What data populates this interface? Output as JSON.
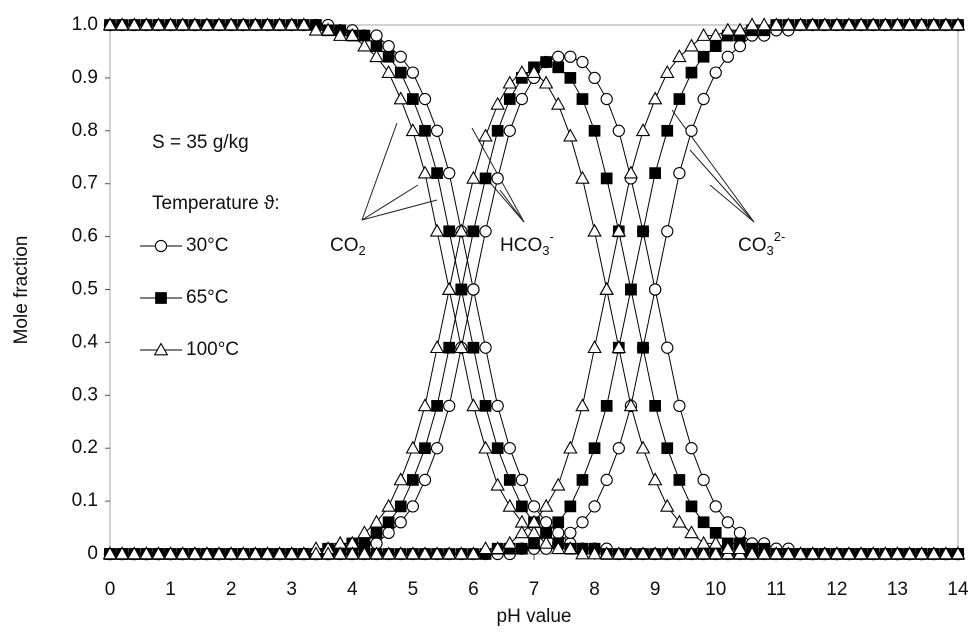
{
  "chart_data": {
    "type": "line",
    "xlabel": "pH value",
    "ylabel": "Mole fraction",
    "xlim": [
      0,
      14
    ],
    "ylim": [
      0,
      1
    ],
    "xticks": [
      0,
      1,
      2,
      3,
      4,
      5,
      6,
      7,
      8,
      9,
      10,
      11,
      12,
      13,
      14
    ],
    "yticks": [
      0,
      0.1,
      0.2,
      0.3,
      0.4,
      0.5,
      0.6,
      0.7,
      0.8,
      0.9,
      {
        "value": 1,
        "label": "1.0"
      }
    ],
    "grid": false,
    "annotations": {
      "salinity": "S = 35 g/kg",
      "legend_title": "Temperature ϑ:",
      "co2": {
        "text": "CO",
        "sub": "2"
      },
      "hco3": {
        "text": "HCO",
        "sub": "3",
        "sup": "-"
      },
      "co3": {
        "text": "CO",
        "sub": "3",
        "sup": "2-"
      }
    },
    "x": [
      0,
      0.2,
      0.4,
      0.6,
      0.8,
      1,
      1.2,
      1.4,
      1.6,
      1.8,
      2,
      2.2,
      2.4,
      2.6,
      2.8,
      3,
      3.2,
      3.4,
      3.6,
      3.8,
      4,
      4.2,
      4.4,
      4.6,
      4.8,
      5,
      5.2,
      5.4,
      5.6,
      5.8,
      6,
      6.2,
      6.4,
      6.6,
      6.8,
      7,
      7.2,
      7.4,
      7.6,
      7.8,
      8,
      8.2,
      8.4,
      8.6,
      8.8,
      9,
      9.2,
      9.4,
      9.6,
      9.8,
      10,
      10.2,
      10.4,
      10.6,
      10.8,
      11,
      11.2,
      11.4,
      11.6,
      11.8,
      12,
      12.2,
      12.4,
      12.6,
      12.8,
      13,
      13.2,
      13.4,
      13.6,
      13.8,
      14
    ],
    "series": [
      {
        "name": "30°C",
        "marker": "circle",
        "color": "#000000",
        "marker_fill": "#ffffff",
        "curves": [
          {
            "values": [
              1,
              1,
              1,
              1,
              1,
              1,
              1,
              1,
              1,
              1,
              1,
              1,
              1,
              1,
              1,
              1,
              1,
              1,
              1,
              0.99,
              0.99,
              0.98,
              0.98,
              0.96,
              0.94,
              0.91,
              0.86,
              0.8,
              0.72,
              0.61,
              0.5,
              0.39,
              0.28,
              0.2,
              0.14,
              0.09,
              0.06,
              0.04,
              0.02,
              0.01,
              0.01,
              0.01,
              0,
              0,
              0,
              0,
              0,
              0,
              0,
              0,
              0,
              0,
              0,
              0,
              0,
              0,
              0,
              0,
              0,
              0,
              0,
              0,
              0,
              0,
              0,
              0,
              0,
              0,
              0,
              0,
              0
            ]
          },
          {
            "values": [
              0,
              0,
              0,
              0,
              0,
              0,
              0,
              0,
              0,
              0,
              0,
              0,
              0,
              0,
              0,
              0,
              0,
              0,
              0,
              0.01,
              0.01,
              0.02,
              0.02,
              0.04,
              0.06,
              0.09,
              0.14,
              0.2,
              0.28,
              0.39,
              0.5,
              0.61,
              0.71,
              0.8,
              0.86,
              0.9,
              0.93,
              0.94,
              0.94,
              0.93,
              0.9,
              0.86,
              0.8,
              0.71,
              0.61,
              0.5,
              0.39,
              0.28,
              0.2,
              0.14,
              0.09,
              0.06,
              0.04,
              0.02,
              0.02,
              0.01,
              0.01,
              0,
              0,
              0,
              0,
              0,
              0,
              0,
              0,
              0,
              0,
              0,
              0,
              0,
              0
            ]
          },
          {
            "values": [
              0,
              0,
              0,
              0,
              0,
              0,
              0,
              0,
              0,
              0,
              0,
              0,
              0,
              0,
              0,
              0,
              0,
              0,
              0,
              0,
              0,
              0,
              0,
              0,
              0,
              0,
              0,
              0,
              0,
              0,
              0,
              0,
              0,
              0,
              0.01,
              0.01,
              0.01,
              0.02,
              0.04,
              0.06,
              0.09,
              0.14,
              0.2,
              0.28,
              0.39,
              0.5,
              0.61,
              0.72,
              0.8,
              0.86,
              0.91,
              0.94,
              0.96,
              0.98,
              0.98,
              0.99,
              0.99,
              1,
              1,
              1,
              1,
              1,
              1,
              1,
              1,
              1,
              1,
              1,
              1,
              1,
              1
            ]
          }
        ]
      },
      {
        "name": "65°C",
        "marker": "square",
        "color": "#000000",
        "marker_fill": "#000000",
        "curves": [
          {
            "values": [
              1,
              1,
              1,
              1,
              1,
              1,
              1,
              1,
              1,
              1,
              1,
              1,
              1,
              1,
              1,
              1,
              1,
              1,
              0.99,
              0.99,
              0.98,
              0.98,
              0.96,
              0.94,
              0.91,
              0.86,
              0.8,
              0.72,
              0.61,
              0.5,
              0.39,
              0.28,
              0.2,
              0.14,
              0.09,
              0.06,
              0.04,
              0.02,
              0.01,
              0.01,
              0.01,
              0,
              0,
              0,
              0,
              0,
              0,
              0,
              0,
              0,
              0,
              0,
              0,
              0,
              0,
              0,
              0,
              0,
              0,
              0,
              0,
              0,
              0,
              0,
              0,
              0,
              0,
              0,
              0,
              0,
              0
            ]
          },
          {
            "values": [
              0,
              0,
              0,
              0,
              0,
              0,
              0,
              0,
              0,
              0,
              0,
              0,
              0,
              0,
              0,
              0,
              0,
              0,
              0.01,
              0.01,
              0.02,
              0.02,
              0.04,
              0.06,
              0.09,
              0.14,
              0.2,
              0.28,
              0.39,
              0.5,
              0.61,
              0.71,
              0.8,
              0.86,
              0.9,
              0.92,
              0.93,
              0.92,
              0.9,
              0.86,
              0.8,
              0.71,
              0.61,
              0.5,
              0.39,
              0.28,
              0.2,
              0.14,
              0.09,
              0.06,
              0.04,
              0.02,
              0.02,
              0.01,
              0.01,
              0,
              0,
              0,
              0,
              0,
              0,
              0,
              0,
              0,
              0,
              0,
              0,
              0,
              0,
              0,
              0
            ]
          },
          {
            "values": [
              0,
              0,
              0,
              0,
              0,
              0,
              0,
              0,
              0,
              0,
              0,
              0,
              0,
              0,
              0,
              0,
              0,
              0,
              0,
              0,
              0,
              0,
              0,
              0,
              0,
              0,
              0,
              0,
              0,
              0,
              0,
              0,
              0.01,
              0.01,
              0.01,
              0.02,
              0.04,
              0.06,
              0.09,
              0.14,
              0.2,
              0.28,
              0.39,
              0.5,
              0.61,
              0.72,
              0.8,
              0.86,
              0.91,
              0.94,
              0.96,
              0.98,
              0.98,
              0.99,
              0.99,
              1,
              1,
              1,
              1,
              1,
              1,
              1,
              1,
              1,
              1,
              1,
              1,
              1,
              1,
              1,
              1
            ]
          }
        ]
      },
      {
        "name": "100°C",
        "marker": "triangle",
        "color": "#000000",
        "marker_fill": "#ffffff",
        "curves": [
          {
            "values": [
              1,
              1,
              1,
              1,
              1,
              1,
              1,
              1,
              1,
              1,
              1,
              1,
              1,
              1,
              1,
              1,
              1,
              0.99,
              0.99,
              0.98,
              0.98,
              0.96,
              0.94,
              0.91,
              0.86,
              0.8,
              0.72,
              0.61,
              0.5,
              0.39,
              0.28,
              0.2,
              0.13,
              0.09,
              0.06,
              0.04,
              0.02,
              0.01,
              0.01,
              0,
              0,
              0,
              0,
              0,
              0,
              0,
              0,
              0,
              0,
              0,
              0,
              0,
              0,
              0,
              0,
              0,
              0,
              0,
              0,
              0,
              0,
              0,
              0,
              0,
              0,
              0,
              0,
              0,
              0,
              0,
              0
            ]
          },
          {
            "values": [
              0,
              0,
              0,
              0,
              0,
              0,
              0,
              0,
              0,
              0,
              0,
              0,
              0,
              0,
              0,
              0,
              0,
              0.01,
              0.01,
              0.02,
              0.02,
              0.04,
              0.06,
              0.09,
              0.14,
              0.2,
              0.28,
              0.39,
              0.5,
              0.61,
              0.71,
              0.79,
              0.85,
              0.89,
              0.91,
              0.91,
              0.89,
              0.85,
              0.79,
              0.71,
              0.61,
              0.5,
              0.39,
              0.28,
              0.2,
              0.14,
              0.09,
              0.06,
              0.04,
              0.02,
              0.02,
              0.01,
              0.01,
              0,
              0,
              0,
              0,
              0,
              0,
              0,
              0,
              0,
              0,
              0,
              0,
              0,
              0,
              0,
              0,
              0,
              0
            ]
          },
          {
            "values": [
              0,
              0,
              0,
              0,
              0,
              0,
              0,
              0,
              0,
              0,
              0,
              0,
              0,
              0,
              0,
              0,
              0,
              0,
              0,
              0,
              0,
              0,
              0,
              0,
              0,
              0,
              0,
              0,
              0,
              0,
              0,
              0.01,
              0.01,
              0.02,
              0.04,
              0.06,
              0.09,
              0.13,
              0.2,
              0.28,
              0.39,
              0.5,
              0.61,
              0.72,
              0.8,
              0.86,
              0.91,
              0.94,
              0.96,
              0.98,
              0.98,
              0.99,
              0.99,
              1,
              1,
              1,
              1,
              1,
              1,
              1,
              1,
              1,
              1,
              1,
              1,
              1,
              1,
              1,
              1,
              1,
              1
            ]
          }
        ]
      }
    ]
  }
}
